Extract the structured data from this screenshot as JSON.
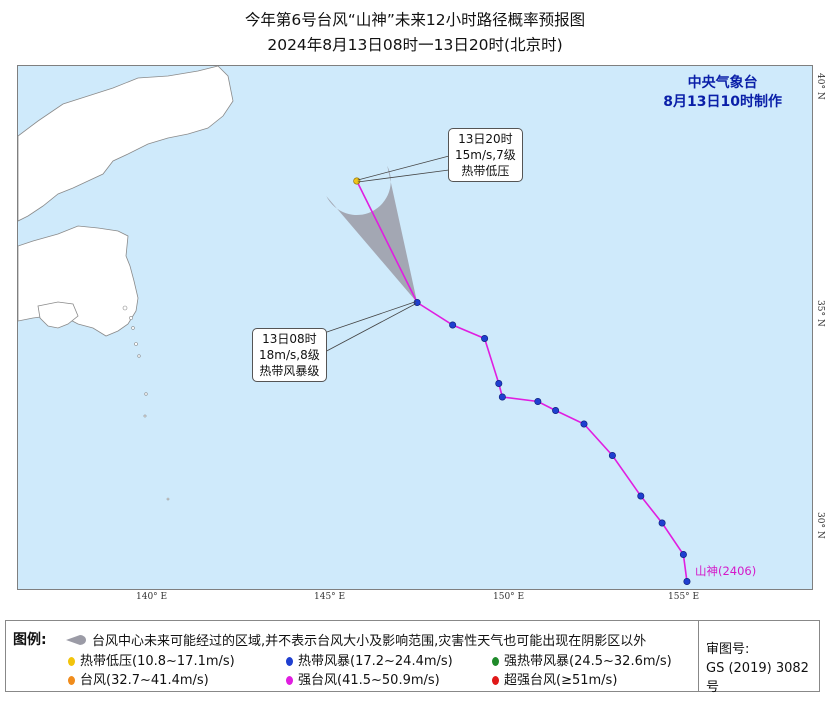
{
  "title": {
    "line1": "今年第6号台风“山神”未来12小时路径概率预报图",
    "line2": "2024年8月13日08时一13日20时(北京时)"
  },
  "agency": {
    "name": "中央气象台",
    "issued": "8月13日10时制作"
  },
  "axes": {
    "lon_ticks": [
      "140° E",
      "145° E",
      "150° E",
      "155° E"
    ],
    "lat_ticks": [
      "40° N",
      "35° N",
      "30° N"
    ]
  },
  "callouts": {
    "forecast": {
      "time": "13日20时",
      "wind": "15m/s,7级",
      "category": "热带低压"
    },
    "current": {
      "time": "13日08时",
      "wind": "18m/s,8级",
      "category": "热带风暴级"
    }
  },
  "storm": {
    "name": "山神",
    "number": "(2406)"
  },
  "track": {
    "past_points": [
      {
        "lon": 155.1,
        "lat": 28.9
      },
      {
        "lon": 155.0,
        "lat": 29.5
      },
      {
        "lon": 154.4,
        "lat": 30.2
      },
      {
        "lon": 153.8,
        "lat": 30.8
      },
      {
        "lon": 153.0,
        "lat": 31.7
      },
      {
        "lon": 152.2,
        "lat": 32.4
      },
      {
        "lon": 151.4,
        "lat": 32.7
      },
      {
        "lon": 150.9,
        "lat": 32.9
      },
      {
        "lon": 149.9,
        "lat": 33.0
      },
      {
        "lon": 149.8,
        "lat": 33.3
      },
      {
        "lon": 149.4,
        "lat": 34.3
      },
      {
        "lon": 148.5,
        "lat": 34.6
      },
      {
        "lon": 147.5,
        "lat": 35.1
      }
    ],
    "forecast_point": {
      "lon": 145.8,
      "lat": 37.8
    },
    "past_color": "#e01ee0",
    "forecast_color": "#f0c419"
  },
  "legend": {
    "title": "图例:",
    "cone_desc": "台风中心未来可能经过的区域,并不表示台风大小及影响范围,灾害性天气也可能出现在阴影区以外",
    "items": [
      {
        "label": "热带低压(10.8~17.1m/s)",
        "color": "#f2c40c"
      },
      {
        "label": "热带风暴(17.2~24.4m/s)",
        "color": "#1f3fd0"
      },
      {
        "label": "强热带风暴(24.5~32.6m/s)",
        "color": "#1f8a2a"
      },
      {
        "label": "台风(32.7~41.4m/s)",
        "color": "#f08c1c"
      },
      {
        "label": "强台风(41.5~50.9m/s)",
        "color": "#e01ee0"
      },
      {
        "label": "超强台风(≥51m/s)",
        "color": "#e01818"
      }
    ],
    "approval_label": "审图号:",
    "approval_value": "GS (2019) 3082号"
  },
  "colors": {
    "ocean": "#cfeafb",
    "land": "#ffffff",
    "cone": "#9b9ba6",
    "agency_blue": "#0a1fa8"
  }
}
